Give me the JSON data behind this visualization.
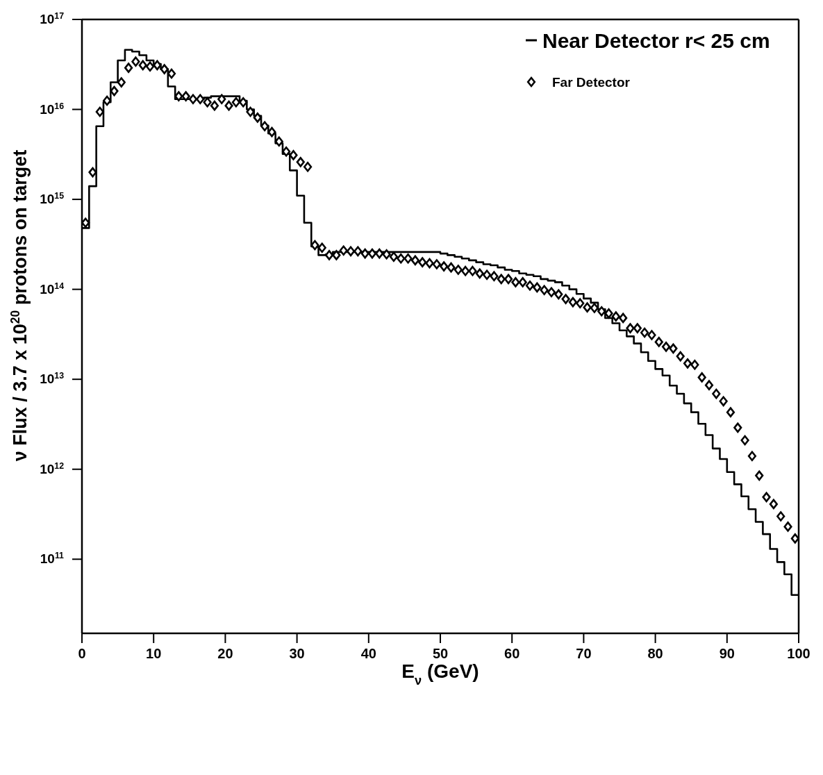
{
  "chart_data": {
    "type": "step",
    "xlabel": "E$_{ν}$ (GeV)",
    "ylabel": "ν Flux / 3.7 x 10$^{20}$ protons on target",
    "log": "y",
    "grid": false,
    "legend": "top right",
    "xlim": [
      0,
      100
    ],
    "xticks": [
      0,
      10,
      20,
      30,
      40,
      50,
      60,
      70,
      80,
      90,
      100
    ],
    "ylim": [
      15000000000.0,
      1e+17
    ],
    "yticks": [
      {
        "value": 100000000000.0,
        "label": "10$^{11}$"
      },
      {
        "value": 1000000000000.0,
        "label": "10$^{12}$"
      },
      {
        "value": 10000000000000.0,
        "label": "10$^{13}$"
      },
      {
        "value": 100000000000000.0,
        "label": "10$^{14}$"
      },
      {
        "value": 1000000000000000.0,
        "label": "10$^{15}$"
      },
      {
        "value": 1e+16,
        "label": "10$^{16}$"
      },
      {
        "value": 1e+17,
        "label": "10$^{17}$"
      }
    ],
    "series": [
      {
        "name": "Near Detector r< 25 cm",
        "color": "#000000",
        "x": [
          0,
          1,
          2,
          3,
          4,
          5,
          6,
          7,
          8,
          9,
          10,
          11,
          12,
          13,
          14,
          15,
          16,
          17,
          18,
          19,
          20,
          21,
          22,
          23,
          24,
          25,
          26,
          27,
          28,
          29,
          30,
          31,
          32,
          33,
          34,
          35,
          36,
          37,
          38,
          39,
          40,
          41,
          42,
          43,
          44,
          45,
          46,
          47,
          48,
          49,
          50,
          51,
          52,
          53,
          54,
          55,
          56,
          57,
          58,
          59,
          60,
          61,
          62,
          63,
          64,
          65,
          66,
          67,
          68,
          69,
          70,
          71,
          72,
          73,
          74,
          75,
          76,
          77,
          78,
          79,
          80,
          81,
          82,
          83,
          84,
          85,
          86,
          87,
          88,
          89,
          90,
          91,
          92,
          93,
          94,
          95,
          96,
          97,
          98,
          99,
          100
        ],
        "values": [
          480000000000000.0,
          1400000000000000.0,
          6500000000000000.0,
          1.2e+16,
          2e+16,
          3.5e+16,
          4.6e+16,
          4.4e+16,
          4e+16,
          3.5e+16,
          3.2e+16,
          2.8e+16,
          1.8e+16,
          1.3e+16,
          1.3e+16,
          1.3e+16,
          1.3e+16,
          1.35e+16,
          1.4e+16,
          1.4e+16,
          1.4e+16,
          1.4e+16,
          1.25e+16,
          1e+16,
          8500000000000000.0,
          6600000000000000.0,
          5400000000000000.0,
          4200000000000000.0,
          3200000000000000.0,
          2100000000000000.0,
          1100000000000000.0,
          550000000000000.0,
          300000000000000.0,
          240000000000000.0,
          245000000000000.0,
          260000000000000.0,
          260000000000000.0,
          260000000000000.0,
          260000000000000.0,
          260000000000000.0,
          260000000000000.0,
          260000000000000.0,
          260000000000000.0,
          260000000000000.0,
          260000000000000.0,
          260000000000000.0,
          260000000000000.0,
          260000000000000.0,
          260000000000000.0,
          260000000000000.0,
          250000000000000.0,
          240000000000000.0,
          230000000000000.0,
          220000000000000.0,
          210000000000000.0,
          200000000000000.0,
          190000000000000.0,
          185000000000000.0,
          175000000000000.0,
          165000000000000.0,
          160000000000000.0,
          150000000000000.0,
          145000000000000.0,
          140000000000000.0,
          130000000000000.0,
          125000000000000.0,
          120000000000000.0,
          110000000000000.0,
          100000000000000.0,
          89000000000000.0,
          79000000000000.0,
          71000000000000.0,
          60000000000000.0,
          48000000000000.0,
          42000000000000.0,
          35000000000000.0,
          30000000000000.0,
          25000000000000.0,
          20000000000000.0,
          16000000000000.0,
          13000000000000.0,
          11000000000000.0,
          8500000000000.0,
          6900000000000.0,
          5400000000000.0,
          4300000000000.0,
          3200000000000.0,
          2400000000000.0,
          1700000000000.0,
          1300000000000.0,
          930000000000.0,
          680000000000.0,
          500000000000.0,
          360000000000.0,
          260000000000.0,
          190000000000.0,
          130000000000.0,
          93000000000.0,
          68000000000.0,
          40000000000.0,
          40000000000.0
        ]
      },
      {
        "name": "Far Detector",
        "type": "scatter",
        "marker": "diamond",
        "color": "#000000",
        "x": [
          0.5,
          1.5,
          2.5,
          3.5,
          4.5,
          5.5,
          6.5,
          7.5,
          8.5,
          9.5,
          10.5,
          11.5,
          12.5,
          13.5,
          14.5,
          15.5,
          16.5,
          17.5,
          18.5,
          19.5,
          20.5,
          21.5,
          22.5,
          23.5,
          24.5,
          25.5,
          26.5,
          27.5,
          28.5,
          29.5,
          30.5,
          31.5,
          32.5,
          33.5,
          34.5,
          35.5,
          36.5,
          37.5,
          38.5,
          39.5,
          40.5,
          41.5,
          42.5,
          43.5,
          44.5,
          45.5,
          46.5,
          47.5,
          48.5,
          49.5,
          50.5,
          51.5,
          52.5,
          53.5,
          54.5,
          55.5,
          56.5,
          57.5,
          58.5,
          59.5,
          60.5,
          61.5,
          62.5,
          63.5,
          64.5,
          65.5,
          66.5,
          67.5,
          68.5,
          69.5,
          70.5,
          71.5,
          72.5,
          73.5,
          74.5,
          75.5,
          76.5,
          77.5,
          78.5,
          79.5,
          80.5,
          81.5,
          82.5,
          83.5,
          84.5,
          85.5,
          86.5,
          87.5,
          88.5,
          89.5,
          90.5,
          91.5,
          92.5,
          93.5,
          94.5,
          95.5,
          96.5,
          97.5,
          98.5,
          99.5
        ],
        "values": [
          550000000000000.0,
          2000000000000000.0,
          9400000000000000.0,
          1.25e+16,
          1.6e+16,
          2e+16,
          2.9e+16,
          3.4e+16,
          3.1e+16,
          3e+16,
          3.1e+16,
          2.8e+16,
          2.5e+16,
          1.4e+16,
          1.4e+16,
          1.3e+16,
          1.3e+16,
          1.2e+16,
          1.1e+16,
          1.3e+16,
          1.1e+16,
          1.2e+16,
          1.2e+16,
          9400000000000000.0,
          8100000000000000.0,
          6500000000000000.0,
          5600000000000000.0,
          4400000000000000.0,
          3400000000000000.0,
          3100000000000000.0,
          2600000000000000.0,
          2300000000000000.0,
          310000000000000.0,
          290000000000000.0,
          240000000000000.0,
          240000000000000.0,
          270000000000000.0,
          265000000000000.0,
          265000000000000.0,
          250000000000000.0,
          250000000000000.0,
          250000000000000.0,
          245000000000000.0,
          230000000000000.0,
          220000000000000.0,
          220000000000000.0,
          210000000000000.0,
          200000000000000.0,
          195000000000000.0,
          190000000000000.0,
          180000000000000.0,
          175000000000000.0,
          165000000000000.0,
          160000000000000.0,
          160000000000000.0,
          150000000000000.0,
          145000000000000.0,
          140000000000000.0,
          130000000000000.0,
          130000000000000.0,
          120000000000000.0,
          120000000000000.0,
          110000000000000.0,
          105000000000000.0,
          98000000000000.0,
          93000000000000.0,
          88000000000000.0,
          78000000000000.0,
          72000000000000.0,
          70000000000000.0,
          63000000000000.0,
          62000000000000.0,
          57000000000000.0,
          54000000000000.0,
          50000000000000.0,
          48000000000000.0,
          37000000000000.0,
          37000000000000.0,
          33000000000000.0,
          31000000000000.0,
          26000000000000.0,
          23000000000000.0,
          22000000000000.0,
          18000000000000.0,
          15000000000000.0,
          14500000000000.0,
          10500000000000.0,
          8600000000000.0,
          6900000000000.0,
          5700000000000.0,
          4300000000000.0,
          2900000000000.0,
          2100000000000.0,
          1400000000000.0,
          850000000000.0,
          490000000000.0,
          410000000000.0,
          300000000000.0,
          230000000000.0,
          170000000000.0
        ]
      }
    ]
  }
}
